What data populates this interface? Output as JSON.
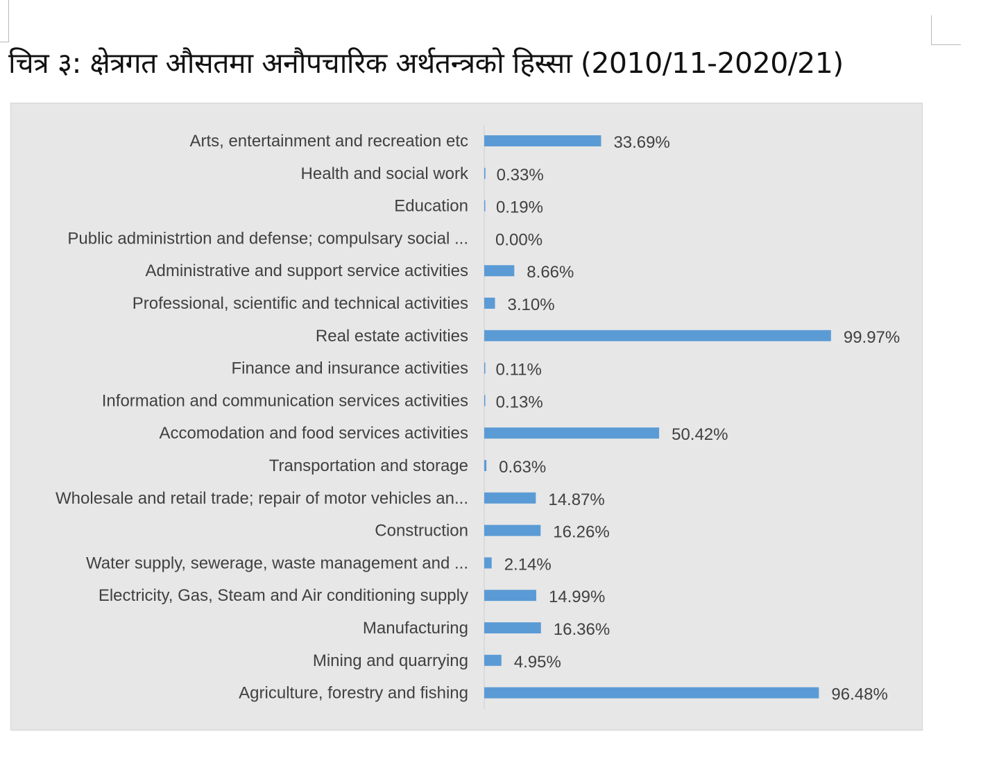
{
  "chart_data": {
    "type": "bar",
    "orientation": "horizontal",
    "title": "चित्र ३: क्षेत्रगत औसतमा अनौपचारिक अर्थतन्त्रको हिस्सा (2010/11-2020/21)",
    "xlabel": "",
    "ylabel": "",
    "xlim": [
      0,
      100
    ],
    "grid": false,
    "legend": "none",
    "bar_color": "#5B9BD5",
    "categories": [
      "Arts, entertainment and recreation etc",
      "Health and social work",
      "Education",
      "Public administrtion and defense; compulsary social ...",
      "Administrative and support service activities",
      "Professional, scientific and technical activities",
      "Real estate activities",
      "Finance and insurance activities",
      "Information and communication services activities",
      "Accomodation and food services activities",
      "Transportation and storage",
      "Wholesale and retail trade; repair of motor vehicles an...",
      "Construction",
      "Water supply, sewerage, waste management and ...",
      "Electricity, Gas, Steam and Air conditioning supply",
      "Manufacturing",
      "Mining and quarrying",
      "Agriculture, forestry and fishing"
    ],
    "values": [
      33.69,
      0.33,
      0.19,
      0.0,
      8.66,
      3.1,
      99.97,
      0.11,
      0.13,
      50.42,
      0.63,
      14.87,
      16.26,
      2.14,
      14.99,
      16.36,
      4.95,
      96.48
    ],
    "data_labels": [
      "33.69%",
      "0.33%",
      "0.19%",
      "0.00%",
      "8.66%",
      "3.10%",
      "99.97%",
      "0.11%",
      "0.13%",
      "50.42%",
      "0.63%",
      "14.87%",
      "16.26%",
      "2.14%",
      "14.99%",
      "16.36%",
      "4.95%",
      "96.48%"
    ]
  }
}
